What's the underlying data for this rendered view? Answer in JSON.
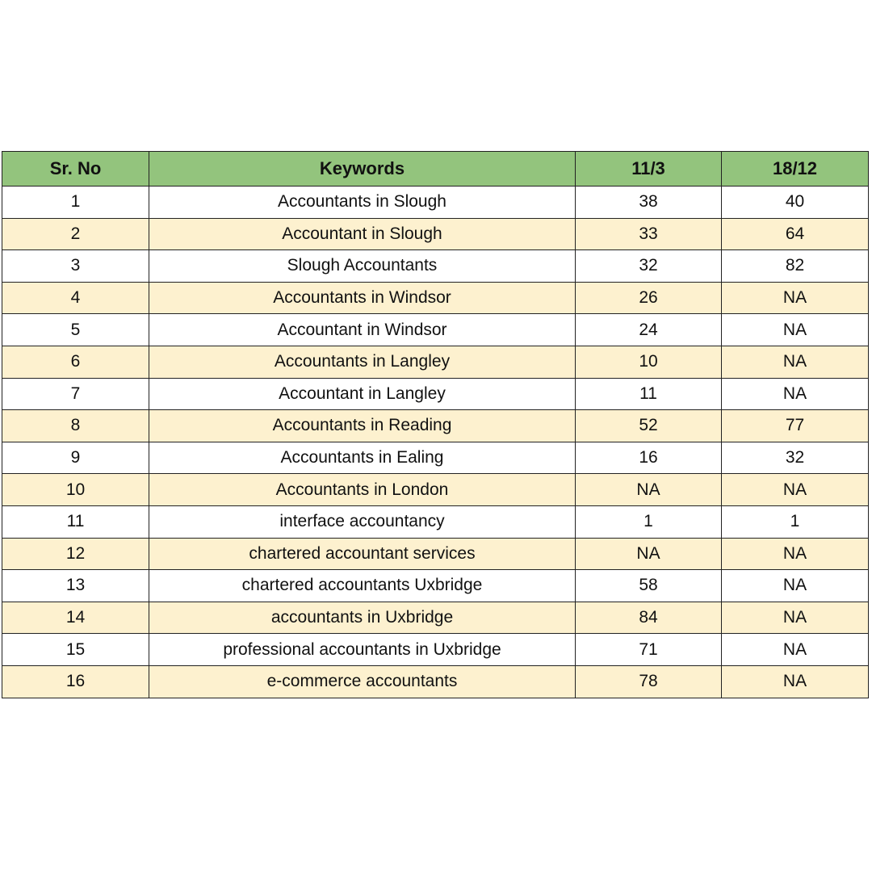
{
  "table": {
    "headers": [
      "Sr. No",
      "Keywords",
      "11/3",
      "18/12"
    ],
    "rows": [
      [
        1,
        "Accountants in Slough",
        38,
        40
      ],
      [
        2,
        "Accountant in Slough",
        33,
        64
      ],
      [
        3,
        "Slough Accountants",
        32,
        82
      ],
      [
        4,
        "Accountants in Windsor",
        26,
        "NA"
      ],
      [
        5,
        "Accountant in Windsor",
        24,
        "NA"
      ],
      [
        6,
        "Accountants in Langley",
        10,
        "NA"
      ],
      [
        7,
        "Accountant in Langley",
        11,
        "NA"
      ],
      [
        8,
        "Accountants in Reading",
        52,
        77
      ],
      [
        9,
        "Accountants in Ealing",
        16,
        32
      ],
      [
        10,
        "Accountants in London",
        "NA",
        "NA"
      ],
      [
        11,
        "interface accountancy",
        1,
        1
      ],
      [
        12,
        "chartered accountant services",
        "NA",
        "NA"
      ],
      [
        13,
        "chartered accountants Uxbridge",
        58,
        "NA"
      ],
      [
        14,
        "accountants in Uxbridge",
        84,
        "NA"
      ],
      [
        15,
        "professional accountants in Uxbridge",
        71,
        "NA"
      ],
      [
        16,
        "e-commerce accountants",
        78,
        "NA"
      ]
    ]
  }
}
